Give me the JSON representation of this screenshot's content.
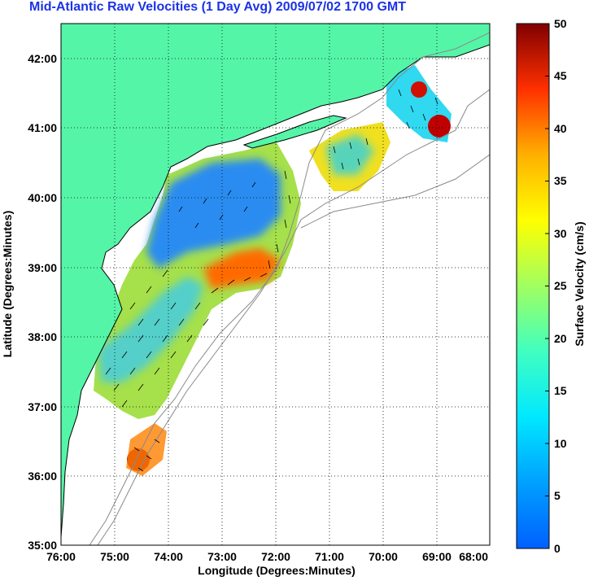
{
  "title": "Mid-Atlantic Raw Velocities (1 Day Avg) 2009/07/02 1700 GMT",
  "x_axis": {
    "label": "Longitude (Degrees:Minutes)",
    "ticks": [
      "76:00",
      "75:00",
      "74:00",
      "73:00",
      "72:00",
      "71:00",
      "70:00",
      "69:00",
      "68:00"
    ]
  },
  "y_axis": {
    "label": "Latitude (Degrees:Minutes)",
    "ticks": [
      "42:00",
      "41:00",
      "40:00",
      "39:00",
      "38:00",
      "37:00",
      "36:00",
      "35:00"
    ]
  },
  "colorbar": {
    "label": "Surface Velocity (cm/s)",
    "ticks": [
      "50",
      "45",
      "40",
      "35",
      "30",
      "25",
      "20",
      "15",
      "10",
      "5",
      "0"
    ],
    "min": 0,
    "max": 50
  },
  "colors": {
    "land": "#55f5a8",
    "title": "#1c33e6",
    "bathymetry": "#8a8a8a"
  },
  "map_extent": {
    "lon": [
      -76,
      -68
    ],
    "lat": [
      35,
      42.5
    ]
  }
}
